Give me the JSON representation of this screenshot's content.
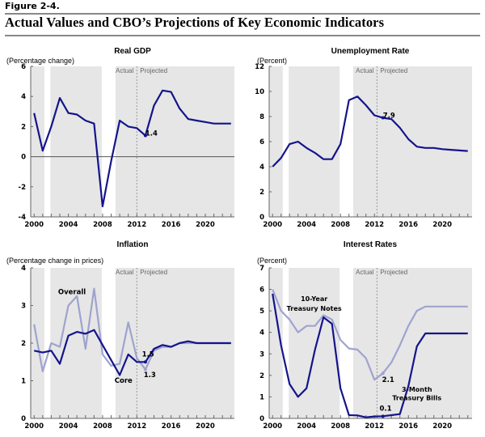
{
  "figure": {
    "label": "Figure 2-4.",
    "title": "Actual Values and CBO’s Projections of Key Economic Indicators"
  },
  "colors": {
    "dark_series": "#14148c",
    "light_series": "#9ea3cf",
    "shade": "#e6e6e6",
    "divider": "#888888"
  },
  "chart_data": [
    {
      "id": "gdp",
      "type": "line",
      "title": "Real GDP",
      "ylabel": "(Percentage change)",
      "xlim": [
        1999.6,
        2023.4
      ],
      "ylim": [
        -4,
        6
      ],
      "yticks": [
        -4,
        -2,
        0,
        2,
        4,
        6
      ],
      "xtick_labels": [
        "2000",
        "2004",
        "2008",
        "2012",
        "2016",
        "2020"
      ],
      "zero_line": true,
      "actual_label": "Actual",
      "projected_label": "Projected",
      "divider_year": 2012,
      "recessions": [
        [
          2001.2,
          2001.9
        ],
        [
          2007.9,
          2009.5
        ]
      ],
      "series": [
        {
          "name": "Real GDP",
          "style": "dark",
          "x": [
            2000,
            2001,
            2002,
            2003,
            2004,
            2005,
            2006,
            2007,
            2008,
            2009,
            2010,
            2011,
            2012,
            2013,
            2014,
            2015,
            2016,
            2017,
            2018,
            2019,
            2020,
            2021,
            2022,
            2023
          ],
          "values": [
            2.9,
            0.4,
            2.0,
            3.9,
            2.9,
            2.8,
            2.4,
            2.2,
            -3.3,
            -0.3,
            2.4,
            2.0,
            1.9,
            1.4,
            3.4,
            4.4,
            4.3,
            3.2,
            2.5,
            2.4,
            2.3,
            2.2,
            2.2,
            2.2
          ]
        }
      ],
      "annotations": [
        {
          "text": "1.4",
          "x": 2013,
          "y": 1.4
        }
      ]
    },
    {
      "id": "unemployment",
      "type": "line",
      "title": "Unemployment Rate",
      "ylabel": "(Percent)",
      "xlim": [
        1999.6,
        2023.5
      ],
      "ylim": [
        0,
        12
      ],
      "yticks": [
        0,
        2,
        4,
        6,
        8,
        10,
        12
      ],
      "xtick_labels": [
        "2000",
        "2004",
        "2008",
        "2012",
        "2016",
        "2020"
      ],
      "zero_line": false,
      "actual_label": "Actual",
      "projected_label": "Projected",
      "divider_year": 2012.3,
      "recessions": [
        [
          2001.2,
          2001.9
        ],
        [
          2007.9,
          2009.5
        ]
      ],
      "series": [
        {
          "name": "Unemployment Rate",
          "style": "dark",
          "x": [
            2000,
            2001,
            2002,
            2003,
            2004,
            2005,
            2006,
            2007,
            2008,
            2009,
            2010,
            2011,
            2012,
            2013,
            2014,
            2015,
            2016,
            2017,
            2018,
            2019,
            2020,
            2021,
            2022,
            2023
          ],
          "values": [
            4.0,
            4.7,
            5.8,
            6.0,
            5.5,
            5.1,
            4.6,
            4.6,
            5.8,
            9.3,
            9.6,
            8.9,
            8.1,
            7.9,
            7.8,
            7.1,
            6.2,
            5.6,
            5.5,
            5.5,
            5.4,
            5.35,
            5.3,
            5.25
          ]
        }
      ],
      "annotations": [
        {
          "text": "7.9",
          "x": 2013,
          "y": 7.9
        }
      ]
    },
    {
      "id": "inflation",
      "type": "line",
      "title": "Inflation",
      "ylabel": "(Percentage change in prices)",
      "xlim": [
        1999.6,
        2023.4
      ],
      "ylim": [
        0,
        4
      ],
      "yticks": [
        0,
        1,
        2,
        3,
        4
      ],
      "xtick_labels": [
        "2000",
        "2004",
        "2008",
        "2012",
        "2016",
        "2020"
      ],
      "zero_line": false,
      "actual_label": "Actual",
      "projected_label": "Projected",
      "divider_year": 2012,
      "recessions": [
        [
          2001.2,
          2001.9
        ],
        [
          2007.9,
          2009.5
        ]
      ],
      "series": [
        {
          "name": "Overall",
          "style": "light",
          "x": [
            2000,
            2001,
            2002,
            2003,
            2004,
            2005,
            2006,
            2007,
            2008,
            2009,
            2010,
            2011,
            2012,
            2013,
            2014,
            2015,
            2016,
            2017,
            2018,
            2019,
            2020,
            2021,
            2022,
            2023
          ],
          "values": [
            2.5,
            1.25,
            2.0,
            1.9,
            3.0,
            3.25,
            1.85,
            3.45,
            1.7,
            1.4,
            1.45,
            2.55,
            1.6,
            1.3,
            1.8,
            1.9,
            1.9,
            2.0,
            2.0,
            2.0,
            2.0,
            2.0,
            2.0,
            2.0
          ]
        },
        {
          "name": "Core",
          "style": "dark",
          "x": [
            2000,
            2001,
            2002,
            2003,
            2004,
            2005,
            2006,
            2007,
            2008,
            2009,
            2010,
            2011,
            2012,
            2013,
            2014,
            2015,
            2016,
            2017,
            2018,
            2019,
            2020,
            2021,
            2022,
            2023
          ],
          "values": [
            1.8,
            1.75,
            1.8,
            1.45,
            2.2,
            2.3,
            2.25,
            2.35,
            1.95,
            1.55,
            1.15,
            1.7,
            1.5,
            1.5,
            1.85,
            1.95,
            1.9,
            2.0,
            2.05,
            2.0,
            2.0,
            2.0,
            2.0,
            2.0
          ]
        }
      ],
      "annotations": [
        {
          "text": "Overall",
          "x": 2002.8,
          "y": 3.3
        },
        {
          "text": "Core",
          "x": 2009.4,
          "y": 0.95
        },
        {
          "text": "1.5",
          "x": 2012.6,
          "y": 1.65
        },
        {
          "text": "1.3",
          "x": 2012.8,
          "y": 1.1
        }
      ]
    },
    {
      "id": "interest",
      "type": "line",
      "title": "Interest Rates",
      "ylabel": "(Percent)",
      "xlim": [
        1999.6,
        2023.5
      ],
      "ylim": [
        0,
        7
      ],
      "yticks": [
        0,
        1,
        2,
        3,
        4,
        5,
        6,
        7
      ],
      "xtick_labels": [
        "2000",
        "2004",
        "2008",
        "2012",
        "2016",
        "2020"
      ],
      "zero_line": false,
      "actual_label": "Actual",
      "projected_label": "Projected",
      "divider_year": 2012.3,
      "recessions": [
        [
          2001.2,
          2001.9
        ],
        [
          2007.9,
          2009.5
        ]
      ],
      "series": [
        {
          "name": "10-Year Treasury Notes",
          "style": "light",
          "x": [
            2000,
            2001,
            2002,
            2003,
            2004,
            2005,
            2006,
            2007,
            2008,
            2009,
            2010,
            2011,
            2012,
            2013,
            2014,
            2015,
            2016,
            2017,
            2018,
            2019,
            2020,
            2021,
            2022,
            2023
          ],
          "values": [
            6.0,
            5.0,
            4.6,
            4.0,
            4.3,
            4.3,
            4.8,
            4.6,
            3.65,
            3.25,
            3.2,
            2.8,
            1.8,
            2.1,
            2.6,
            3.4,
            4.3,
            5.0,
            5.2,
            5.2,
            5.2,
            5.2,
            5.2,
            5.2
          ]
        },
        {
          "name": "3-Month Treasury Bills",
          "style": "dark",
          "x": [
            2000,
            2001,
            2002,
            2003,
            2004,
            2005,
            2006,
            2007,
            2008,
            2009,
            2010,
            2011,
            2012,
            2013,
            2014,
            2015,
            2016,
            2017,
            2018,
            2019,
            2020,
            2021,
            2022,
            2023
          ],
          "values": [
            5.8,
            3.4,
            1.6,
            1.0,
            1.4,
            3.2,
            4.7,
            4.4,
            1.4,
            0.15,
            0.14,
            0.05,
            0.09,
            0.1,
            0.15,
            0.2,
            1.5,
            3.35,
            3.95,
            3.95,
            3.95,
            3.95,
            3.95,
            3.95
          ]
        }
      ],
      "annotations": [
        {
          "text": "10-Year",
          "x": 2004.9,
          "y": 5.45,
          "centered": true
        },
        {
          "text": "Treasury Notes",
          "x": 2004.9,
          "y": 5.0,
          "centered": true
        },
        {
          "text": "2.1",
          "x": 2012.9,
          "y": 1.7
        },
        {
          "text": "0.1",
          "x": 2012.6,
          "y": 0.35
        },
        {
          "text": "3-Month",
          "x": 2017.0,
          "y": 1.25,
          "centered": true
        },
        {
          "text": "Treasury Bills",
          "x": 2017.0,
          "y": 0.85,
          "centered": true
        }
      ]
    }
  ]
}
